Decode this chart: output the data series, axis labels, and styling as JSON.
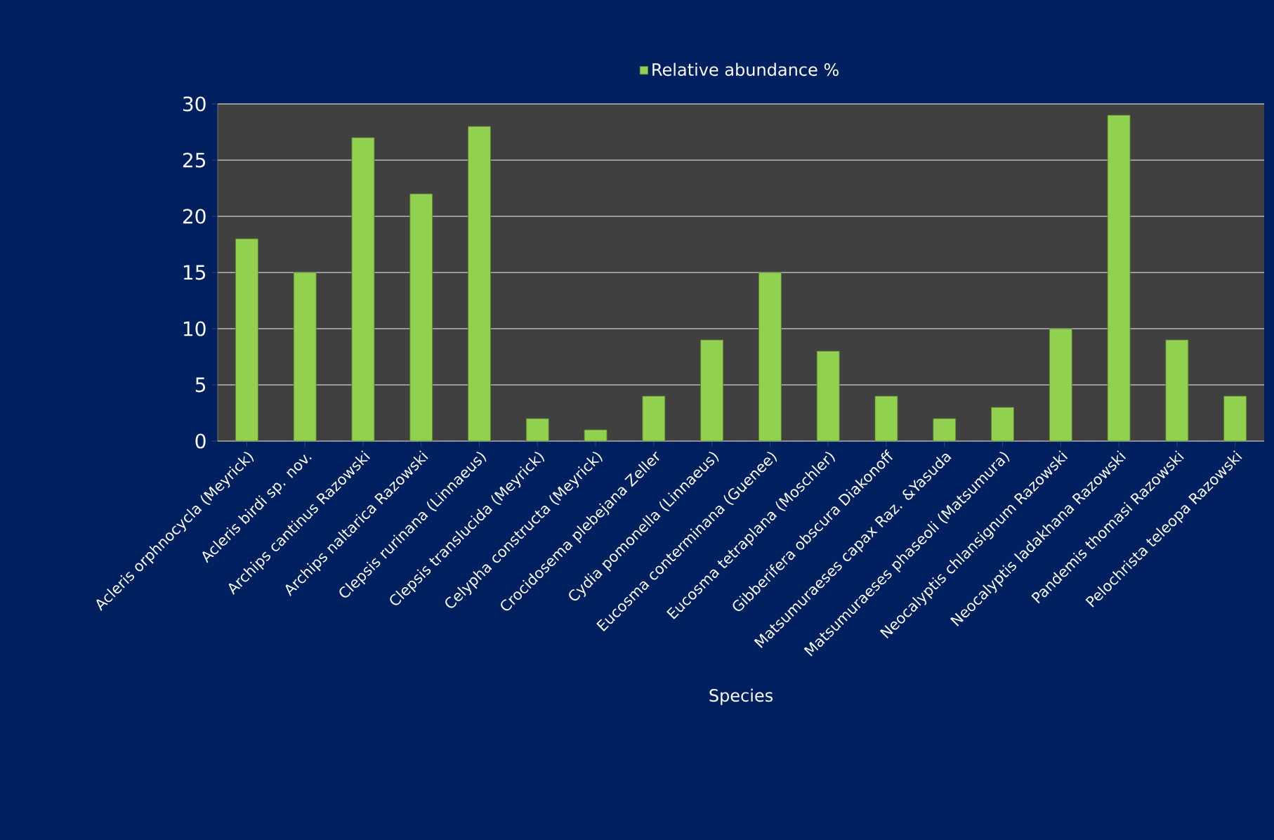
{
  "chart_data": {
    "type": "bar",
    "xlabel": "Species",
    "categories": [
      "Acleris orphnocycla (Meyrick)",
      "Acleris birdi sp. nov.",
      "Archips cantinus Razowski",
      "Archips naltarica Razowski",
      "Clepsis rurinana (Linnaeus)",
      "Clepsis translucida (Meyrick)",
      "Celypha constructa (Meyrick)",
      "Crocidosema plebejana Zeller",
      "Cydia pomonella (Linnaeus)",
      "Eucosma conterminana (Guenee)",
      "Eucosma tetraplana (Moschler)",
      "Gibberifera obscura Diakonoff",
      "Matsumuraeses capax Raz. &Yasuda",
      "Matsumuraeses phaseoli (Matsumura)",
      "Neocalyptis chlansignum Razowski",
      "Neocalyptis ladakhana Razowski",
      "Pandemis thomasi Razowski",
      "Pelochrista teleopa Razowski"
    ],
    "series": [
      {
        "name": "Relative abundance %",
        "color": "#92d050",
        "values": [
          18,
          15,
          27,
          22,
          28,
          2,
          1,
          4,
          9,
          15,
          8,
          4,
          2,
          3,
          10,
          29,
          9,
          4
        ]
      }
    ],
    "ylim": [
      0,
      30
    ],
    "yticks": [
      0,
      5,
      10,
      15,
      20,
      25,
      30
    ],
    "grid": "y",
    "legend": "top"
  }
}
